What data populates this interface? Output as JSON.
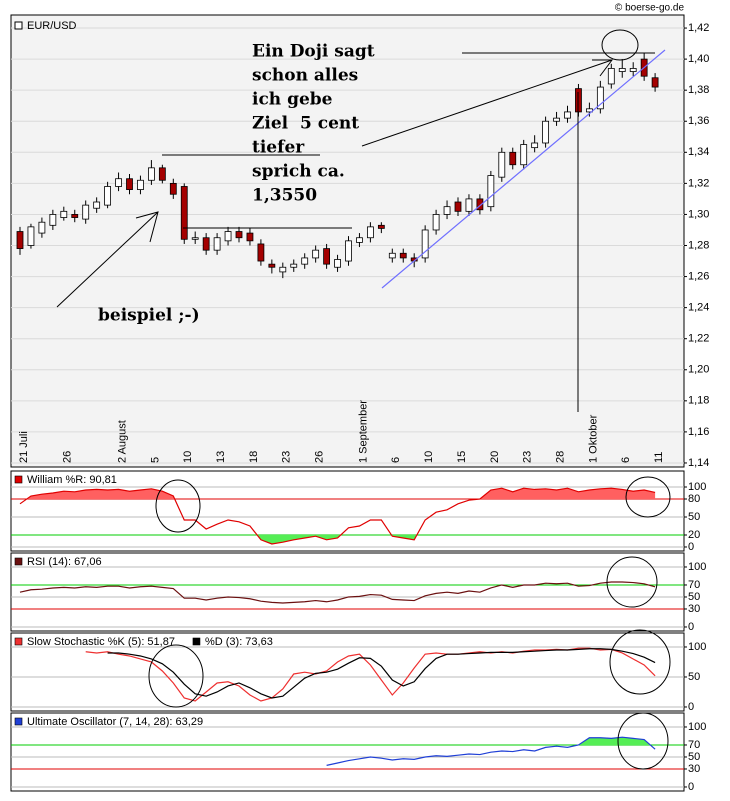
{
  "chart_data": [
    {
      "type": "candlestick",
      "legend": "EUR/USD",
      "source": "© boerse-go.de",
      "categories": [
        "21 Juli",
        null,
        null,
        null,
        "26",
        null,
        null,
        null,
        null,
        "2 August",
        null,
        null,
        "5",
        null,
        null,
        "10",
        null,
        null,
        "13",
        null,
        null,
        "18",
        null,
        null,
        "23",
        null,
        null,
        "26",
        null,
        null,
        null,
        "1 September",
        null,
        null,
        "6",
        null,
        null,
        "10",
        null,
        null,
        "15",
        null,
        null,
        "20",
        null,
        null,
        "23",
        null,
        null,
        "28",
        null,
        null,
        "1 Oktober",
        null,
        null,
        "6",
        null,
        null,
        "11"
      ],
      "open": [
        1.289,
        1.28,
        1.288,
        1.293,
        1.298,
        1.3,
        1.297,
        1.304,
        1.306,
        1.318,
        1.323,
        1.316,
        1.322,
        1.33,
        1.32,
        1.318,
        1.284,
        1.285,
        1.277,
        1.283,
        1.289,
        1.288,
        1.281,
        1.268,
        1.263,
        1.266,
        1.268,
        1.272,
        1.278,
        1.266,
        1.27,
        1.282,
        1.285,
        1.293,
        1.272,
        1.275,
        1.272,
        1.272,
        1.29,
        1.3,
        1.308,
        1.302,
        1.31,
        1.305,
        1.324,
        1.34,
        1.332,
        1.343,
        1.346,
        1.36,
        1.362,
        1.381,
        1.366,
        1.368,
        1.384,
        1.392,
        1.392,
        1.4,
        1.388
      ],
      "high": [
        1.292,
        1.294,
        1.298,
        1.303,
        1.305,
        1.303,
        1.309,
        1.311,
        1.321,
        1.327,
        1.326,
        1.325,
        1.335,
        1.332,
        1.323,
        1.32,
        1.289,
        1.288,
        1.288,
        1.292,
        1.292,
        1.291,
        1.284,
        1.271,
        1.269,
        1.271,
        1.275,
        1.28,
        1.281,
        1.274,
        1.286,
        1.288,
        1.295,
        1.295,
        1.278,
        1.278,
        1.275,
        1.293,
        1.303,
        1.309,
        1.311,
        1.313,
        1.313,
        1.328,
        1.343,
        1.343,
        1.348,
        1.351,
        1.363,
        1.366,
        1.37,
        1.384,
        1.372,
        1.386,
        1.397,
        1.4,
        1.398,
        1.404,
        1.391
      ],
      "low": [
        1.274,
        1.278,
        1.285,
        1.29,
        1.296,
        1.295,
        1.294,
        1.301,
        1.304,
        1.315,
        1.313,
        1.313,
        1.319,
        1.32,
        1.31,
        1.281,
        1.281,
        1.274,
        1.274,
        1.28,
        1.282,
        1.28,
        1.267,
        1.262,
        1.259,
        1.263,
        1.265,
        1.269,
        1.265,
        1.263,
        1.267,
        1.279,
        1.282,
        1.288,
        1.269,
        1.269,
        1.266,
        1.269,
        1.287,
        1.297,
        1.299,
        1.299,
        1.3,
        1.302,
        1.321,
        1.329,
        1.329,
        1.34,
        1.343,
        1.357,
        1.359,
        1.363,
        1.363,
        1.365,
        1.381,
        1.388,
        1.389,
        1.386,
        1.379
      ],
      "close": [
        1.278,
        1.292,
        1.295,
        1.3,
        1.302,
        1.298,
        1.306,
        1.308,
        1.318,
        1.323,
        1.316,
        1.322,
        1.33,
        1.322,
        1.313,
        1.284,
        1.285,
        1.277,
        1.285,
        1.289,
        1.285,
        1.283,
        1.27,
        1.266,
        1.266,
        1.268,
        1.272,
        1.277,
        1.268,
        1.271,
        1.283,
        1.285,
        1.292,
        1.291,
        1.275,
        1.272,
        1.27,
        1.29,
        1.3,
        1.305,
        1.302,
        1.31,
        1.303,
        1.325,
        1.34,
        1.332,
        1.345,
        1.346,
        1.36,
        1.362,
        1.366,
        1.366,
        1.368,
        1.382,
        1.394,
        1.394,
        1.394,
        1.389,
        1.382
      ],
      "up_color": "#ffffff",
      "down_color": "#a40000",
      "ylim": [
        1.1374,
        1.4284
      ],
      "yticks": [
        {
          "value": 1.14,
          "label": "1,14"
        },
        {
          "value": 1.16,
          "label": "1,16"
        },
        {
          "value": 1.18,
          "label": "1,18"
        },
        {
          "value": 1.2,
          "label": "1,20"
        },
        {
          "value": 1.22,
          "label": "1,22"
        },
        {
          "value": 1.24,
          "label": "1,24"
        },
        {
          "value": 1.26,
          "label": "1,26"
        },
        {
          "value": 1.28,
          "label": "1,28"
        },
        {
          "value": 1.3,
          "label": "1,30"
        },
        {
          "value": 1.32,
          "label": "1,32"
        },
        {
          "value": 1.34,
          "label": "1,34"
        },
        {
          "value": 1.36,
          "label": "1,36"
        },
        {
          "value": 1.38,
          "label": "1,38"
        },
        {
          "value": 1.4,
          "label": "1,40"
        },
        {
          "value": 1.42,
          "label": "1,42"
        }
      ],
      "annotation": [
        "Ein Doji sagt",
        "schon alles",
        "ich gebe",
        "Ziel  5 cent",
        "tiefer",
        "sprich ca.",
        "1,3550"
      ],
      "note": "beispiel ;-)"
    },
    {
      "type": "line",
      "series": [
        {
          "name": "William %R: 90,81",
          "color": "#e00000",
          "values": [
            72,
            85,
            88,
            90,
            93,
            92,
            95,
            96,
            95,
            96,
            93,
            95,
            97,
            93,
            85,
            45,
            45,
            30,
            38,
            45,
            42,
            35,
            12,
            5,
            8,
            12,
            15,
            18,
            12,
            15,
            32,
            35,
            45,
            45,
            18,
            15,
            12,
            45,
            58,
            62,
            72,
            78,
            80,
            95,
            98,
            92,
            98,
            96,
            97,
            95,
            98,
            92,
            95,
            97,
            98,
            96,
            93,
            95,
            91
          ]
        }
      ],
      "ylim": [
        -6.7,
        126.7
      ],
      "yticks": [
        0,
        20,
        50,
        80,
        100
      ],
      "levels": [
        {
          "value": 80,
          "color": "#e00000",
          "fill": "#ff6060",
          "side": "above"
        },
        {
          "value": 20,
          "color": "#00cc00",
          "fill": "#55ee55",
          "side": "below"
        }
      ]
    },
    {
      "type": "line",
      "series": [
        {
          "name": "RSI (14): 67,06",
          "color": "#6b1010",
          "values": [
            58,
            62,
            63,
            65,
            66,
            65,
            67,
            66,
            68,
            68,
            65,
            67,
            68,
            66,
            64,
            48,
            48,
            45,
            48,
            50,
            49,
            47,
            43,
            41,
            40,
            41,
            42,
            44,
            42,
            45,
            50,
            51,
            54,
            53,
            46,
            45,
            44,
            52,
            56,
            58,
            56,
            60,
            58,
            65,
            70,
            66,
            70,
            70,
            73,
            72,
            73,
            68,
            69,
            73,
            75,
            75,
            74,
            72,
            67
          ]
        }
      ],
      "ylim": [
        -6.7,
        123.3
      ],
      "yticks": [
        0,
        30,
        50,
        70,
        100
      ],
      "levels": [
        {
          "value": 70,
          "color": "#00cc00"
        },
        {
          "value": 30,
          "color": "#e00000"
        }
      ]
    },
    {
      "type": "line",
      "series": [
        {
          "name": "Slow Stochastic %K (5): 51,87",
          "color": "#ee3030",
          "values": [
            null,
            null,
            null,
            null,
            null,
            null,
            92,
            90,
            92,
            88,
            85,
            80,
            75,
            60,
            40,
            15,
            10,
            25,
            40,
            42,
            35,
            20,
            10,
            15,
            30,
            55,
            58,
            55,
            60,
            75,
            85,
            88,
            70,
            45,
            20,
            40,
            65,
            88,
            90,
            88,
            88,
            90,
            92,
            90,
            92,
            90,
            93,
            95,
            95,
            96,
            95,
            98,
            98,
            95,
            96,
            90,
            80,
            70,
            52
          ]
        },
        {
          "name": "%D (3): 73,63",
          "color": "#000000",
          "values": [
            null,
            null,
            null,
            null,
            null,
            null,
            null,
            null,
            90,
            90,
            88,
            85,
            80,
            72,
            58,
            38,
            22,
            18,
            25,
            35,
            40,
            32,
            22,
            15,
            18,
            33,
            48,
            56,
            58,
            63,
            73,
            82,
            81,
            68,
            45,
            35,
            42,
            64,
            81,
            88,
            88,
            89,
            90,
            91,
            91,
            91,
            92,
            93,
            94,
            95,
            95,
            96,
            97,
            97,
            96,
            93,
            89,
            83,
            74
          ]
        }
      ],
      "ylim": [
        -6.7,
        123.3
      ],
      "yticks": [
        0,
        50,
        100
      ],
      "levels": []
    },
    {
      "type": "line",
      "series": [
        {
          "name": "Ultimate Oscillator (7, 14, 28): 63,29",
          "color": "#1f3fd6",
          "values": [
            null,
            null,
            null,
            null,
            null,
            null,
            null,
            null,
            null,
            null,
            null,
            null,
            null,
            null,
            null,
            null,
            null,
            null,
            null,
            null,
            null,
            null,
            null,
            null,
            null,
            null,
            null,
            null,
            36,
            40,
            44,
            47,
            50,
            48,
            45,
            47,
            46,
            50,
            52,
            51,
            53,
            55,
            54,
            58,
            60,
            59,
            62,
            60,
            66,
            68,
            66,
            70,
            82,
            82,
            81,
            83,
            81,
            79,
            63
          ]
        }
      ],
      "ylim": [
        -6.7,
        123.3
      ],
      "yticks": [
        0,
        30,
        50,
        70,
        100
      ],
      "levels": [
        {
          "value": 70,
          "color": "#00cc00",
          "fill": "#55ee55",
          "side": "above"
        },
        {
          "value": 30,
          "color": "#e00000"
        }
      ]
    }
  ]
}
